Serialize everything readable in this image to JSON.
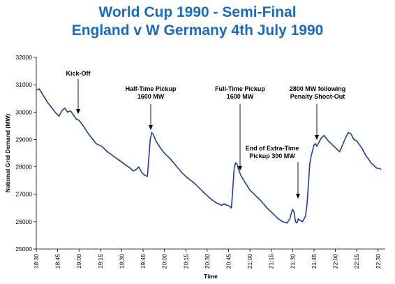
{
  "chart_data": {
    "type": "line",
    "title": "World Cup 1990 - Semi-Final",
    "subtitle": "England v W Germany 4th July 1990",
    "xlabel": "Time",
    "ylabel": "National Grid Demand (MW)",
    "ylim": [
      25000,
      32000
    ],
    "yticks": [
      25000,
      26000,
      27000,
      28000,
      29000,
      30000,
      31000,
      32000
    ],
    "ytick_labels": [
      "25000",
      "26000",
      "27000",
      "28000",
      "29000",
      "30000",
      "31000",
      "32000"
    ],
    "xlim_minutes": [
      0,
      245
    ],
    "xticks": [
      "18:30",
      "18:45",
      "19:00",
      "19:15",
      "19:30",
      "19:45",
      "20:00",
      "20:15",
      "20:30",
      "20:45",
      "21:00",
      "21:15",
      "21:30",
      "21:45",
      "22:00",
      "22:15",
      "22:30"
    ],
    "grid": false,
    "line_color": "#1f3f8f",
    "series": [
      {
        "name": "",
        "x": [
          "18:30",
          "18:32",
          "18:35",
          "18:38",
          "18:41",
          "18:44",
          "18:46",
          "18:48",
          "18:50",
          "18:52",
          "18:54",
          "18:56",
          "18:58",
          "19:00",
          "19:03",
          "19:06",
          "19:09",
          "19:12",
          "19:16",
          "19:20",
          "19:24",
          "19:28",
          "19:32",
          "19:36",
          "19:38",
          "19:40",
          "19:42",
          "19:44",
          "19:46",
          "19:48",
          "19:49",
          "19:50",
          "19:51",
          "19:52",
          "19:54",
          "19:57",
          "20:00",
          "20:04",
          "20:08",
          "20:12",
          "20:16",
          "20:20",
          "20:24",
          "20:28",
          "20:32",
          "20:36",
          "20:40",
          "20:42",
          "20:44",
          "20:46",
          "20:47",
          "20:48",
          "20:49",
          "20:50",
          "20:51",
          "20:52",
          "20:54",
          "20:57",
          "21:00",
          "21:04",
          "21:08",
          "21:12",
          "21:16",
          "21:20",
          "21:23",
          "21:26",
          "21:28",
          "21:29",
          "21:30",
          "21:31",
          "21:32",
          "21:33",
          "21:34",
          "21:35",
          "21:37",
          "21:39",
          "21:40",
          "21:41",
          "21:42",
          "21:43",
          "21:44",
          "21:45",
          "21:46",
          "21:47",
          "21:48",
          "21:50",
          "21:52",
          "21:55",
          "21:58",
          "22:01",
          "22:03",
          "22:05",
          "22:07",
          "22:09",
          "22:11",
          "22:13",
          "22:15",
          "22:17",
          "22:19",
          "22:21",
          "22:23",
          "22:25",
          "22:27",
          "22:29",
          "22:31",
          "22:32"
        ],
        "y": [
          30800,
          30850,
          30600,
          30350,
          30150,
          29950,
          29850,
          30050,
          30150,
          30000,
          30050,
          29900,
          29750,
          29700,
          29500,
          29250,
          29050,
          28850,
          28750,
          28550,
          28400,
          28250,
          28100,
          27950,
          27850,
          27900,
          28000,
          27800,
          27700,
          27650,
          28300,
          29000,
          29250,
          29200,
          28950,
          28700,
          28500,
          28300,
          28050,
          27800,
          27600,
          27450,
          27250,
          27050,
          26850,
          26700,
          26600,
          26650,
          26600,
          26550,
          26500,
          27200,
          28000,
          28150,
          28100,
          27900,
          27650,
          27400,
          27150,
          26950,
          26750,
          26500,
          26300,
          26100,
          26000,
          25950,
          26100,
          26300,
          26450,
          26350,
          26000,
          25950,
          26100,
          26050,
          26000,
          26200,
          26600,
          27300,
          28100,
          28400,
          28600,
          28800,
          28850,
          28750,
          28850,
          29050,
          29150,
          28950,
          28800,
          28650,
          28550,
          28800,
          29050,
          29250,
          29200,
          29000,
          28950,
          28800,
          28650,
          28450,
          28300,
          28150,
          28050,
          27950,
          27950,
          27900
        ]
      }
    ],
    "annotations": [
      {
        "lines": [
          "Kick-Off"
        ],
        "x": "19:00",
        "y": 29800
      },
      {
        "lines": [
          "Half-Time Pickup",
          "1600 MW"
        ],
        "x": "19:51",
        "y": 29250
      },
      {
        "lines": [
          "Full-Time Pickup",
          "1600 MW"
        ],
        "x": "20:51",
        "y": 28150
      },
      {
        "lines": [
          "End of Extra-Time",
          "Pickup 300 MW"
        ],
        "x": "21:31",
        "y": 26450
      },
      {
        "lines": [
          "2800 MW following",
          "Penalty Shoot-Out"
        ],
        "x": "21:45",
        "y": 28800
      }
    ]
  }
}
